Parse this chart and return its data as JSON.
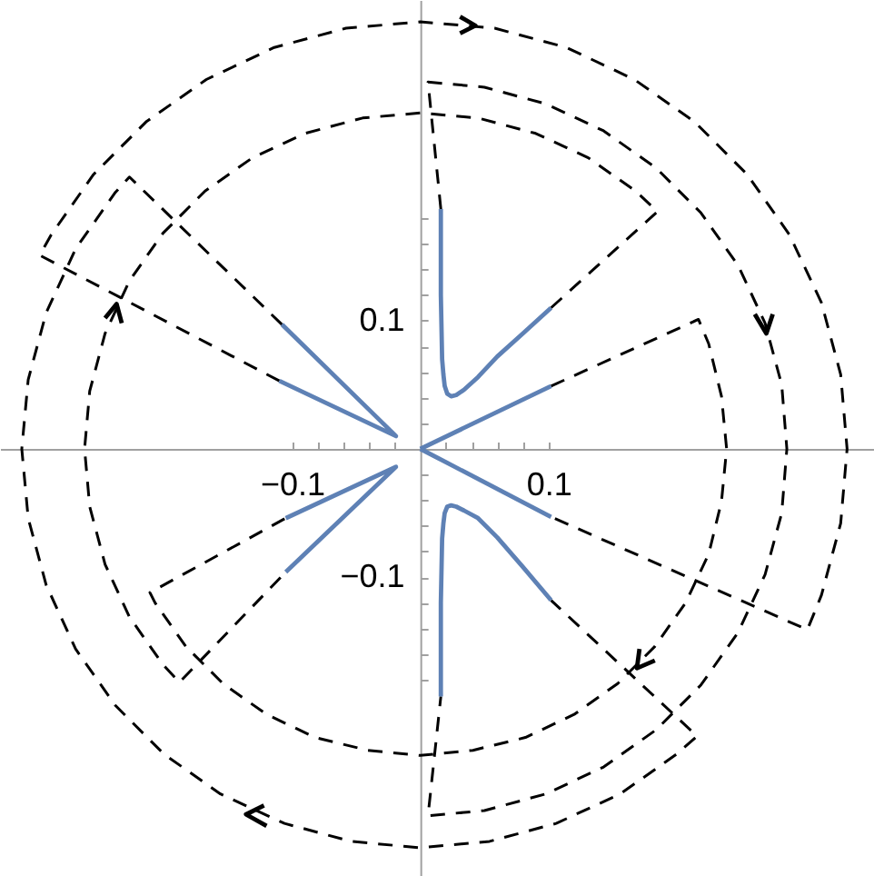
{
  "chart_data": {
    "type": "line",
    "xlim": [
      -0.328,
      0.354
    ],
    "ylim": [
      -0.333,
      0.35
    ],
    "xticks": [
      {
        "value": -0.1,
        "label": "−0.1"
      },
      {
        "value": -0.08,
        "label": null
      },
      {
        "value": -0.06,
        "label": null
      },
      {
        "value": -0.04,
        "label": null
      },
      {
        "value": -0.02,
        "label": null
      },
      {
        "value": 0.02,
        "label": null
      },
      {
        "value": 0.04,
        "label": null
      },
      {
        "value": 0.06,
        "label": null
      },
      {
        "value": 0.08,
        "label": null
      },
      0.1
    ],
    "yticks": [
      {
        "value": -0.18,
        "label": null
      },
      {
        "value": -0.16,
        "label": null
      },
      {
        "value": -0.14,
        "label": null
      },
      {
        "value": -0.12,
        "label": null
      },
      {
        "value": -0.1,
        "label": "−0.1"
      },
      {
        "value": -0.08,
        "label": null
      },
      {
        "value": -0.06,
        "label": null
      },
      {
        "value": -0.04,
        "label": null
      },
      {
        "value": -0.02,
        "label": null
      },
      {
        "value": 0.02,
        "label": null
      },
      {
        "value": 0.04,
        "label": null
      },
      {
        "value": 0.06,
        "label": null
      },
      {
        "value": 0.08,
        "label": null
      },
      0.1,
      {
        "value": 0.12,
        "label": null
      },
      {
        "value": 0.14,
        "label": null
      },
      {
        "value": 0.16,
        "label": null
      },
      {
        "value": 0.18,
        "label": null
      }
    ],
    "series": [
      {
        "color": "#000000",
        "line_style": "dashed",
        "x": [
          -0.11,
          -0.297,
          -0.288,
          -0.255,
          -0.214,
          -0.167,
          -0.114,
          -0.058,
          0,
          0.058,
          0.114,
          0.167,
          0.214,
          0.255,
          0.288,
          0.313,
          0.328,
          0.333,
          0.328,
          0.313,
          0.302,
          0.102
        ],
        "values": [
          0.053,
          0.151,
          0.167,
          0.214,
          0.255,
          0.288,
          0.313,
          0.328,
          0.333,
          0.328,
          0.313,
          0.288,
          0.255,
          0.214,
          0.167,
          0.114,
          0.058,
          0,
          -0.058,
          -0.114,
          -0.141,
          -0.053
        ]
      },
      {
        "color": "#000000",
        "line_style": "dashed",
        "x": [
          -0.108,
          -0.227,
          -0.238,
          -0.269,
          -0.292,
          -0.306,
          -0.311,
          -0.306,
          -0.292,
          -0.269,
          -0.238,
          -0.2,
          -0.156,
          -0.106,
          -0.054,
          0,
          0.054,
          0.106,
          0.156,
          0.2,
          0.216,
          0.102
        ],
        "values": [
          0.097,
          0.212,
          0.2,
          0.156,
          0.106,
          0.054,
          0,
          -0.054,
          -0.106,
          -0.156,
          -0.2,
          -0.238,
          -0.269,
          -0.292,
          -0.306,
          -0.311,
          -0.306,
          -0.292,
          -0.269,
          -0.238,
          -0.224,
          -0.118
        ]
      },
      {
        "color": "#000000",
        "line_style": "dashed",
        "x": [
          0.102,
          0.185,
          0.168,
          0.131,
          0.09,
          0.045,
          0,
          -0.045,
          -0.09,
          -0.131,
          -0.168,
          -0.201,
          -0.227,
          -0.246,
          -0.258,
          -0.262,
          -0.258,
          -0.246,
          -0.227,
          -0.201,
          -0.188,
          -0.105
        ],
        "values": [
          0.11,
          0.185,
          0.201,
          0.227,
          0.246,
          0.258,
          0.262,
          0.258,
          0.246,
          0.227,
          0.201,
          0.168,
          0.131,
          0.09,
          0.045,
          0,
          -0.045,
          -0.09,
          -0.131,
          -0.168,
          -0.182,
          -0.096
        ]
      },
      {
        "color": "#000000",
        "line_style": "dashed",
        "x": [
          0.102,
          0.217,
          0.225,
          0.235,
          0.239,
          0.235,
          0.225,
          0.207,
          0.183,
          0.154,
          0.12,
          0.082,
          0.041,
          0,
          -0.041,
          -0.082,
          -0.12,
          -0.154,
          -0.183,
          -0.207,
          -0.211,
          -0.105
        ],
        "values": [
          0.049,
          0.101,
          0.082,
          0.041,
          0,
          -0.041,
          -0.082,
          -0.12,
          -0.154,
          -0.183,
          -0.207,
          -0.225,
          -0.235,
          -0.239,
          -0.235,
          -0.225,
          -0.207,
          -0.183,
          -0.154,
          -0.12,
          -0.112,
          -0.054
        ]
      },
      {
        "color": "#000000",
        "line_style": "dashed",
        "x": [
          0.016,
          0.006,
          0.05,
          0.098,
          0.143,
          0.184,
          0.219,
          0.248,
          0.269,
          0.282,
          0.286,
          0.282,
          0.269,
          0.248,
          0.219,
          0.184,
          0.143,
          0.098,
          0.05,
          0.006,
          0.016
        ],
        "values": [
          0.187,
          0.286,
          0.282,
          0.269,
          0.248,
          0.219,
          0.184,
          0.143,
          0.098,
          0.05,
          0,
          -0.05,
          -0.098,
          -0.143,
          -0.184,
          -0.219,
          -0.248,
          -0.269,
          -0.282,
          -0.286,
          -0.193
        ]
      },
      {
        "color": "#5e81b5",
        "line_style": "solid",
        "x": [
          0.016,
          0.016,
          0.017,
          0.018,
          0.019,
          0.021,
          0.024,
          0.028,
          0.034,
          0.045,
          0.06,
          0.08,
          0.102
        ],
        "values": [
          0.187,
          0.12,
          0.07,
          0.058,
          0.049,
          0.043,
          0.041,
          0.042,
          0.046,
          0.056,
          0.072,
          0.09,
          0.11
        ]
      },
      {
        "color": "#5e81b5",
        "line_style": "solid",
        "x": [
          0.016,
          0.016,
          0.017,
          0.018,
          0.019,
          0.021,
          0.024,
          0.028,
          0.034,
          0.045,
          0.06,
          0.08,
          0.102
        ],
        "values": [
          -0.193,
          -0.12,
          -0.07,
          -0.058,
          -0.05,
          -0.045,
          -0.044,
          -0.045,
          -0.048,
          -0.054,
          -0.069,
          -0.092,
          -0.118
        ]
      },
      {
        "color": "#5e81b5",
        "line_style": "solid",
        "x": [
          0,
          0.102
        ],
        "values": [
          0,
          0.049
        ]
      },
      {
        "color": "#5e81b5",
        "line_style": "solid",
        "x": [
          0,
          0.102
        ],
        "values": [
          0,
          -0.053
        ]
      },
      {
        "color": "#5e81b5",
        "line_style": "solid",
        "x": [
          -0.11,
          -0.019,
          -0.108
        ],
        "values": [
          0.053,
          0.01,
          0.097
        ]
      },
      {
        "color": "#5e81b5",
        "line_style": "solid",
        "x": [
          -0.105,
          -0.019,
          -0.105
        ],
        "values": [
          -0.054,
          -0.014,
          -0.096
        ]
      },
      {
        "color": "#000000",
        "line_style": "solid",
        "x": [
          0.031,
          0.043,
          0.031
        ],
        "values": [
          0.337,
          0.33,
          0.324
        ]
      },
      {
        "color": "#000000",
        "line_style": "solid",
        "x": [
          0.261,
          0.27,
          0.275
        ],
        "values": [
          0.105,
          0.09,
          0.105
        ]
      },
      {
        "color": "#000000",
        "line_style": "solid",
        "x": [
          -0.246,
          -0.237,
          -0.233
        ],
        "values": [
          0.102,
          0.113,
          0.098
        ]
      },
      {
        "color": "#000000",
        "line_style": "solid",
        "x": [
          -0.122,
          -0.136,
          -0.12
        ],
        "values": [
          -0.278,
          -0.285,
          -0.294
        ]
      },
      {
        "color": "#000000",
        "line_style": "solid",
        "x": [
          0.171,
          0.169,
          0.183
        ],
        "values": [
          -0.156,
          -0.171,
          -0.165
        ]
      }
    ]
  }
}
